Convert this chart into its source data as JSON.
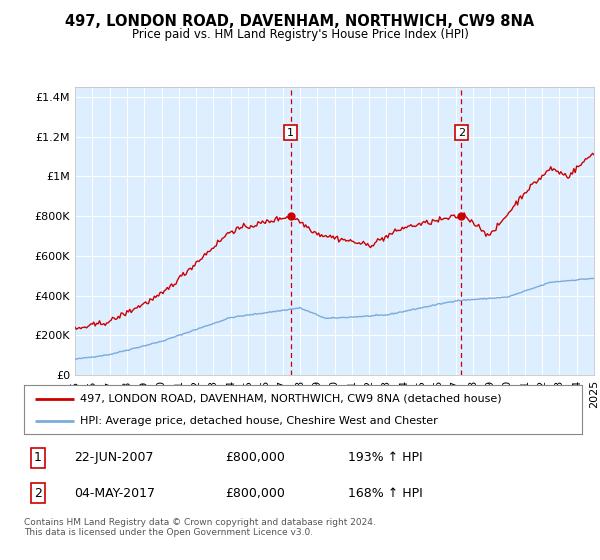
{
  "title1": "497, LONDON ROAD, DAVENHAM, NORTHWICH, CW9 8NA",
  "title2": "Price paid vs. HM Land Registry's House Price Index (HPI)",
  "legend1": "497, LONDON ROAD, DAVENHAM, NORTHWICH, CW9 8NA (detached house)",
  "legend2": "HPI: Average price, detached house, Cheshire West and Chester",
  "annotation1_date": "22-JUN-2007",
  "annotation1_price": "£800,000",
  "annotation1_hpi": "193% ↑ HPI",
  "annotation2_date": "04-MAY-2017",
  "annotation2_price": "£800,000",
  "annotation2_hpi": "168% ↑ HPI",
  "footer": "Contains HM Land Registry data © Crown copyright and database right 2024.\nThis data is licensed under the Open Government Licence v3.0.",
  "sale1_year": 2007.47,
  "sale1_value": 800000,
  "sale2_year": 2017.34,
  "sale2_value": 800000,
  "red_color": "#cc0000",
  "blue_color": "#7aabdc",
  "background_color": "#ddeeff",
  "ylim_min": 0,
  "ylim_max": 1450000,
  "yticks": [
    0,
    200000,
    400000,
    600000,
    800000,
    1000000,
    1200000,
    1400000
  ],
  "xlim_min": 1995,
  "xlim_max": 2025,
  "seed": 42
}
